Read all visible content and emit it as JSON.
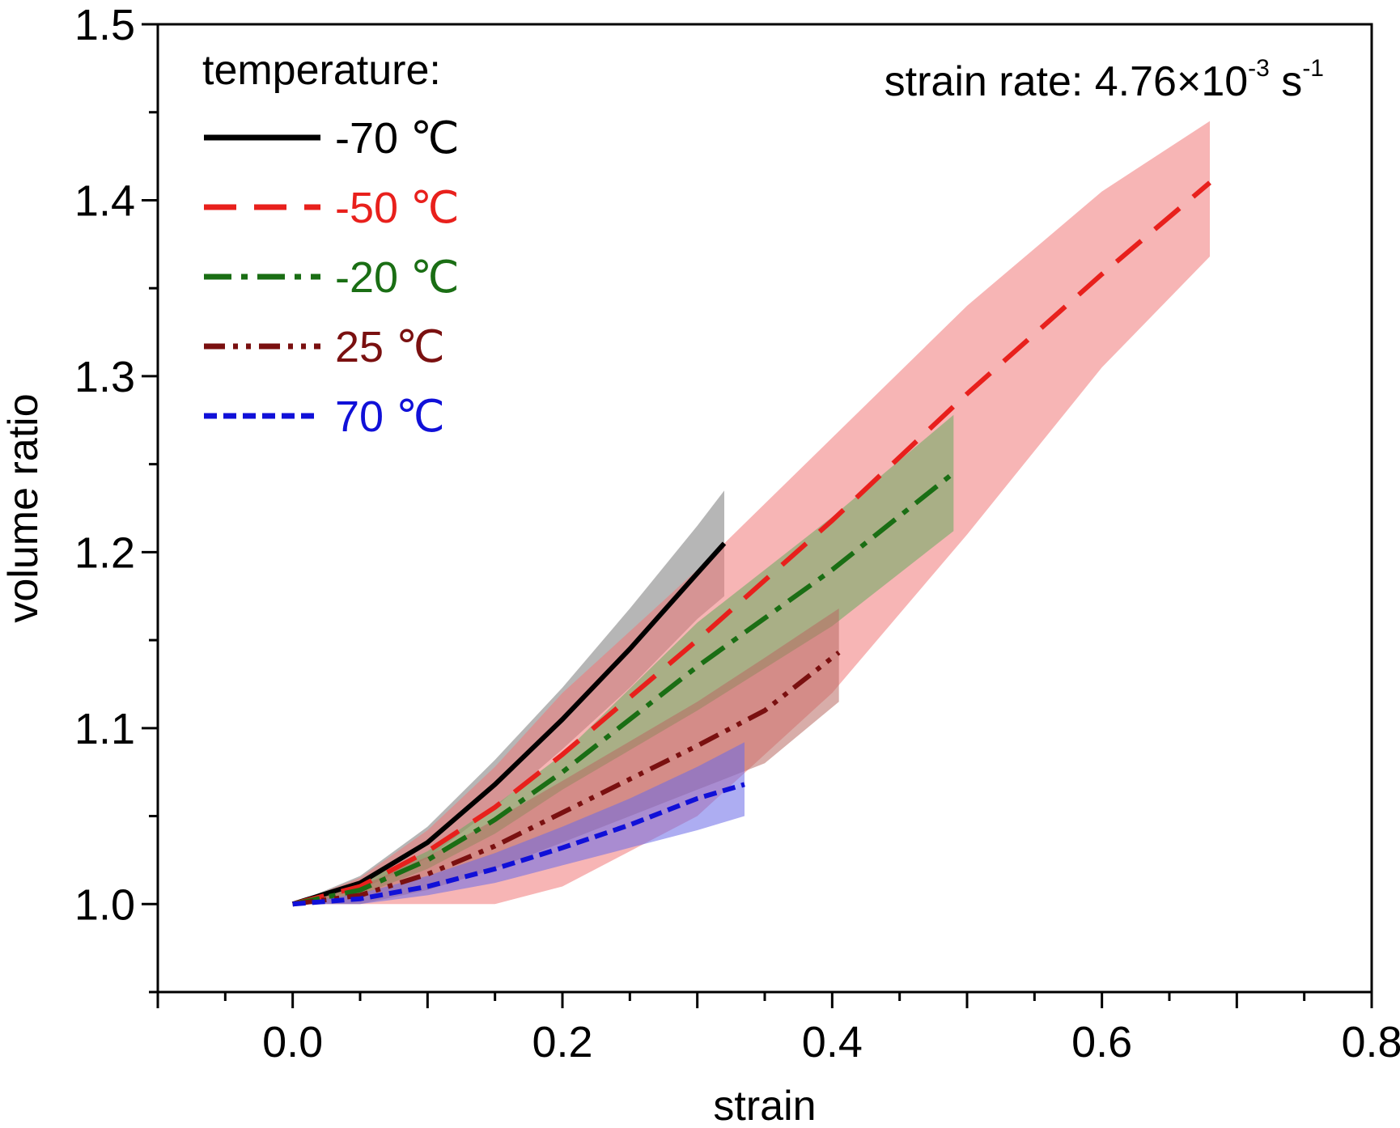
{
  "chart_data": {
    "type": "line",
    "xlabel": "strain",
    "ylabel": "volume ratio",
    "xlim": [
      -0.1,
      0.8
    ],
    "ylim": [
      0.95,
      1.5
    ],
    "xticks": [
      0.0,
      0.2,
      0.4,
      0.6,
      0.8
    ],
    "xtick_labels": [
      "0.0",
      "0.2",
      "0.4",
      "0.6",
      "0.8"
    ],
    "yticks": [
      1.0,
      1.1,
      1.2,
      1.3,
      1.4,
      1.5
    ],
    "ytick_labels": [
      "1.0",
      "1.1",
      "1.2",
      "1.3",
      "1.4",
      "1.5"
    ],
    "grid": false,
    "legend_title": "temperature:",
    "legend_position": "top-left",
    "annotation": {
      "prefix": "strain rate: 4.76×10",
      "exp1": "-3",
      "mid": " s",
      "exp2": "-1"
    },
    "series": [
      {
        "name": "-70 ℃",
        "color": "#000000",
        "band_color": "#7a7a7a",
        "dash": "solid",
        "x": [
          0.0,
          0.05,
          0.1,
          0.15,
          0.2,
          0.25,
          0.3,
          0.32
        ],
        "y": [
          1.0,
          1.012,
          1.035,
          1.068,
          1.105,
          1.145,
          1.188,
          1.205
        ],
        "lower": [
          1.0,
          1.008,
          1.026,
          1.055,
          1.088,
          1.123,
          1.162,
          1.175
        ],
        "upper": [
          1.0,
          1.016,
          1.044,
          1.082,
          1.123,
          1.168,
          1.215,
          1.235
        ]
      },
      {
        "name": "-50 ℃",
        "color": "#e8201c",
        "band_color": "#f07878",
        "dash": "long-dash",
        "x": [
          0.0,
          0.05,
          0.1,
          0.15,
          0.2,
          0.3,
          0.4,
          0.5,
          0.6,
          0.68
        ],
        "y": [
          1.0,
          1.01,
          1.03,
          1.055,
          1.085,
          1.15,
          1.218,
          1.29,
          1.358,
          1.41
        ],
        "lower": [
          1.0,
          1.0,
          1.0,
          1.0,
          1.01,
          1.05,
          1.12,
          1.21,
          1.305,
          1.368
        ],
        "upper": [
          1.0,
          1.015,
          1.042,
          1.078,
          1.12,
          1.19,
          1.265,
          1.34,
          1.405,
          1.445
        ]
      },
      {
        "name": "-20 ℃",
        "color": "#1a6e14",
        "band_color": "#6aaa5e",
        "dash": "dash-dot",
        "x": [
          0.0,
          0.05,
          0.1,
          0.15,
          0.2,
          0.3,
          0.4,
          0.49
        ],
        "y": [
          1.0,
          1.008,
          1.025,
          1.048,
          1.075,
          1.135,
          1.19,
          1.245
        ],
        "lower": [
          1.0,
          1.005,
          1.02,
          1.04,
          1.065,
          1.11,
          1.158,
          1.212
        ],
        "upper": [
          1.0,
          1.012,
          1.03,
          1.056,
          1.085,
          1.16,
          1.22,
          1.278
        ]
      },
      {
        "name": "25 ℃",
        "color": "#7a1010",
        "band_color": "#b86a62",
        "dash": "dash-dot-dot",
        "x": [
          0.0,
          0.05,
          0.1,
          0.15,
          0.2,
          0.3,
          0.35,
          0.405
        ],
        "y": [
          1.0,
          1.005,
          1.017,
          1.033,
          1.052,
          1.09,
          1.11,
          1.143
        ],
        "lower": [
          1.0,
          1.0,
          1.008,
          1.02,
          1.035,
          1.065,
          1.08,
          1.115
        ],
        "upper": [
          1.0,
          1.01,
          1.027,
          1.048,
          1.07,
          1.115,
          1.14,
          1.168
        ]
      },
      {
        "name": "70 ℃",
        "color": "#1010d8",
        "band_color": "#6a6ae8",
        "dash": "short-dash",
        "x": [
          0.0,
          0.05,
          0.1,
          0.15,
          0.2,
          0.25,
          0.3,
          0.335
        ],
        "y": [
          1.0,
          1.003,
          1.01,
          1.02,
          1.032,
          1.045,
          1.06,
          1.068
        ],
        "lower": [
          1.0,
          1.0,
          1.005,
          1.012,
          1.022,
          1.032,
          1.042,
          1.05
        ],
        "upper": [
          1.0,
          1.006,
          1.016,
          1.029,
          1.044,
          1.06,
          1.078,
          1.092
        ]
      }
    ]
  }
}
